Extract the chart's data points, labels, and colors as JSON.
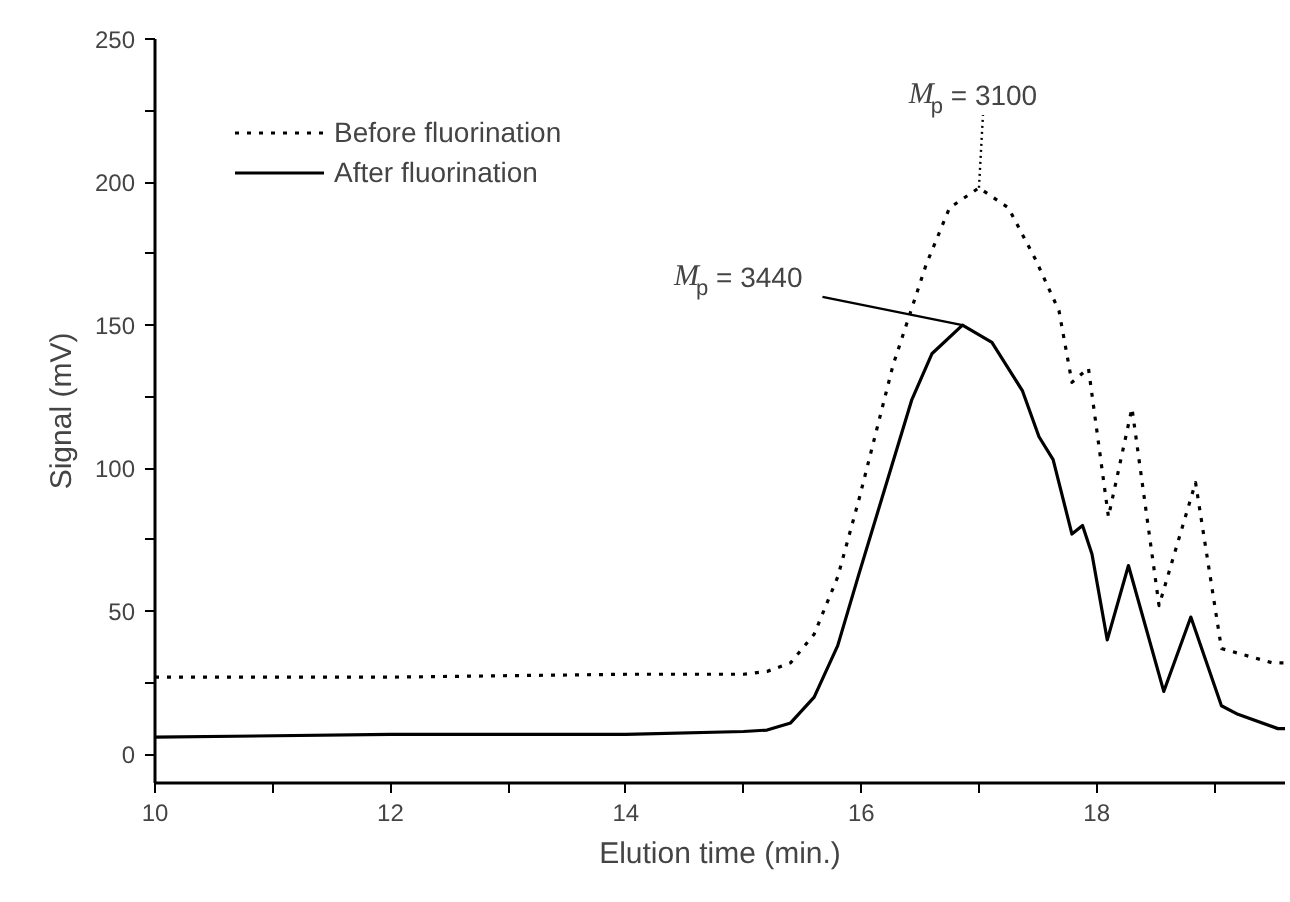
{
  "chart_data": {
    "type": "line",
    "xlabel": "Elution time (min.)",
    "ylabel": "Signal (mV)",
    "xlim": [
      10,
      19.6
    ],
    "ylim": [
      -10,
      250
    ],
    "xticks": [
      10,
      {
        "value": 11,
        "label": null
      },
      12,
      {
        "value": 13,
        "label": null
      },
      14,
      {
        "value": 15,
        "label": null
      },
      16,
      {
        "value": 17,
        "label": null
      },
      18,
      {
        "value": 19,
        "label": null
      }
    ],
    "yticks": [
      0,
      {
        "value": 25,
        "label": null
      },
      50,
      {
        "value": 75,
        "label": null
      },
      100,
      {
        "value": 125,
        "label": null
      },
      150,
      {
        "value": 175,
        "label": null
      },
      200,
      {
        "value": 225,
        "label": null
      },
      250
    ],
    "grid": false,
    "legend": "top left",
    "marker": "none",
    "series": [
      {
        "name": "Before fluorination",
        "color": "#000000",
        "line_style": "dotted",
        "x": [
          10,
          12,
          14,
          15,
          15.2,
          15.4,
          15.6,
          15.8,
          15.98,
          16.27,
          16.55,
          16.75,
          17.0,
          17.25,
          17.48,
          17.68,
          17.79,
          17.93,
          18.1,
          18.3,
          18.53,
          18.84,
          19.06,
          19.49,
          19.6
        ],
        "values": [
          27,
          27,
          28,
          28,
          29,
          32,
          42,
          62,
          89,
          136,
          171,
          191,
          198,
          191,
          173,
          155,
          130,
          135,
          83,
          121,
          52,
          95,
          37,
          32,
          32
        ]
      },
      {
        "name": "After fluorination",
        "color": "#000000",
        "line_style": "solid",
        "x": [
          10,
          12,
          14,
          15,
          15.2,
          15.4,
          15.6,
          15.8,
          15.98,
          16.43,
          16.6,
          16.86,
          17.11,
          17.37,
          17.51,
          17.63,
          17.79,
          17.88,
          17.96,
          18.09,
          18.27,
          18.57,
          18.8,
          19.06,
          19.2,
          19.54,
          19.6
        ],
        "values": [
          6,
          7,
          7,
          8,
          8.5,
          11,
          20,
          38,
          63,
          124,
          140,
          150,
          144,
          127,
          111,
          103,
          77,
          80,
          70,
          40,
          66,
          22,
          48,
          17,
          14,
          9,
          9
        ]
      }
    ],
    "annotations": [
      {
        "text": "M$_{p}$ = 3440",
        "x": 16.86,
        "y": 150
      },
      {
        "text": "M$_{p}$ = 3100",
        "x": 17.0,
        "y": 198
      }
    ]
  }
}
